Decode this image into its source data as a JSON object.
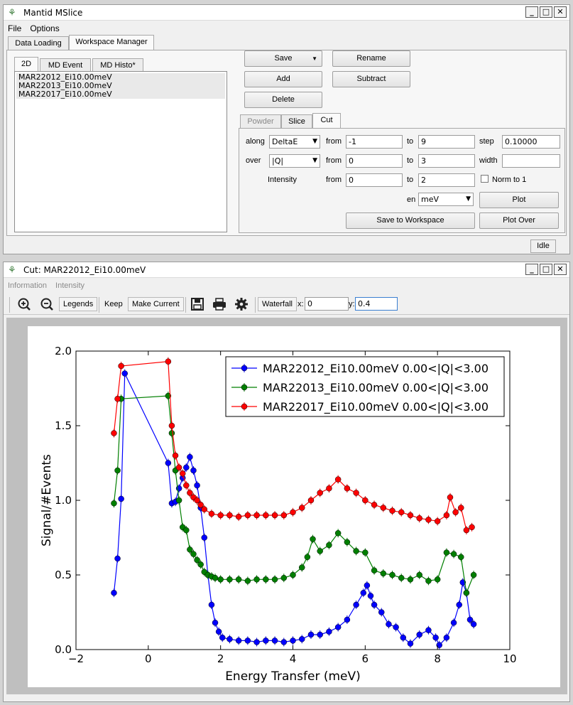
{
  "main_window": {
    "title": "Mantid MSlice",
    "menus": [
      "File",
      "Options"
    ],
    "tabs": [
      "Data Loading",
      "Workspace Manager"
    ],
    "ws_tabs": [
      "2D",
      "MD Event",
      "MD Histo*"
    ],
    "workspaces": [
      "MAR22012_Ei10.00meV",
      "MAR22013_Ei10.00meV",
      "MAR22017_Ei10.00meV"
    ],
    "buttons": {
      "save": "Save",
      "rename": "Rename",
      "add": "Add",
      "subtract": "Subtract",
      "delete": "Delete"
    },
    "sub_tabs": [
      "Powder",
      "Slice",
      "Cut"
    ],
    "cut": {
      "along_label": "along",
      "along_value": "DeltaE",
      "over_label": "over",
      "over_value": "|Q|",
      "intensity_label": "Intensity",
      "from_label": "from",
      "to_label": "to",
      "along_from": "-1",
      "along_to": "9",
      "step_label": "step",
      "step_value": "0.10000",
      "over_from": "0",
      "over_to": "3",
      "width_label": "width",
      "width_value": "",
      "int_from": "0",
      "int_to": "2",
      "norm_label": "Norm to 1",
      "en_label": "en",
      "en_value": "meV",
      "plot": "Plot",
      "save_ws": "Save to Workspace",
      "plot_over": "Plot Over"
    },
    "status": "Idle"
  },
  "plot_window": {
    "title": "Cut: MAR22012_Ei10.00meV",
    "menus": [
      "Information",
      "Intensity"
    ],
    "toolbar": {
      "legends": "Legends",
      "keep": "Keep",
      "make_current": "Make Current",
      "waterfall": "Waterfall",
      "x_label": "x:",
      "x_value": "0",
      "y_label": "y:",
      "y_value": "0.4"
    }
  },
  "chart_data": {
    "type": "line",
    "xlabel": "Energy Transfer (meV)",
    "ylabel": "Signal/#Events",
    "xlim": [
      -2,
      10
    ],
    "ylim": [
      0,
      2.0
    ],
    "xticks": [
      "-2",
      "0",
      "2",
      "4",
      "6",
      "8",
      "10"
    ],
    "yticks": [
      "0.0",
      "0.5",
      "1.0",
      "1.5",
      "2.0"
    ],
    "legend_position": "top-right",
    "series": [
      {
        "name": "MAR22012_Ei10.00meV 0.00<|Q|<3.00",
        "color": "#0000ff",
        "x": [
          -0.95,
          -0.85,
          -0.75,
          -0.65,
          0.55,
          0.65,
          0.75,
          0.85,
          0.95,
          1.05,
          1.15,
          1.25,
          1.35,
          1.45,
          1.55,
          1.65,
          1.75,
          1.85,
          1.95,
          2.05,
          2.25,
          2.5,
          2.75,
          3.0,
          3.25,
          3.5,
          3.75,
          4.0,
          4.25,
          4.5,
          4.75,
          5.0,
          5.25,
          5.5,
          5.75,
          5.95,
          6.05,
          6.15,
          6.25,
          6.45,
          6.65,
          6.85,
          7.05,
          7.25,
          7.5,
          7.75,
          7.95,
          8.05,
          8.25,
          8.45,
          8.6,
          8.7,
          8.8,
          8.9,
          9.0
        ],
        "y": [
          0.38,
          0.61,
          1.01,
          1.85,
          1.25,
          0.98,
          0.99,
          1.08,
          1.15,
          1.22,
          1.29,
          1.2,
          1.1,
          0.95,
          0.75,
          0.5,
          0.3,
          0.18,
          0.12,
          0.08,
          0.07,
          0.06,
          0.06,
          0.05,
          0.06,
          0.06,
          0.05,
          0.06,
          0.07,
          0.1,
          0.1,
          0.12,
          0.15,
          0.2,
          0.3,
          0.38,
          0.43,
          0.36,
          0.3,
          0.25,
          0.17,
          0.15,
          0.08,
          0.04,
          0.1,
          0.13,
          0.08,
          0.03,
          0.08,
          0.18,
          0.3,
          0.45,
          0.38,
          0.2,
          0.17
        ]
      },
      {
        "name": "MAR22013_Ei10.00meV 0.00<|Q|<3.00",
        "color": "#007f00",
        "x": [
          -0.95,
          -0.85,
          -0.75,
          0.55,
          0.65,
          0.75,
          0.85,
          0.95,
          1.05,
          1.15,
          1.25,
          1.35,
          1.45,
          1.55,
          1.65,
          1.75,
          1.85,
          2.0,
          2.25,
          2.5,
          2.75,
          3.0,
          3.25,
          3.5,
          3.75,
          4.0,
          4.25,
          4.4,
          4.55,
          4.75,
          5.0,
          5.25,
          5.5,
          5.75,
          6.0,
          6.25,
          6.5,
          6.75,
          7.0,
          7.25,
          7.5,
          7.75,
          8.0,
          8.25,
          8.45,
          8.65,
          8.8,
          9.0
        ],
        "y": [
          0.98,
          1.2,
          1.68,
          1.7,
          1.45,
          1.2,
          1.0,
          0.82,
          0.8,
          0.67,
          0.64,
          0.6,
          0.57,
          0.52,
          0.5,
          0.49,
          0.48,
          0.47,
          0.47,
          0.47,
          0.46,
          0.47,
          0.47,
          0.47,
          0.48,
          0.5,
          0.55,
          0.62,
          0.74,
          0.66,
          0.7,
          0.78,
          0.72,
          0.66,
          0.65,
          0.53,
          0.51,
          0.5,
          0.48,
          0.47,
          0.5,
          0.46,
          0.47,
          0.65,
          0.64,
          0.62,
          0.38,
          0.5
        ]
      },
      {
        "name": "MAR22017_Ei10.00meV 0.00<|Q|<3.00",
        "color": "#ff0000",
        "x": [
          -0.95,
          -0.85,
          -0.75,
          0.55,
          0.65,
          0.75,
          0.85,
          0.95,
          1.05,
          1.15,
          1.25,
          1.35,
          1.45,
          1.55,
          1.75,
          2.0,
          2.25,
          2.5,
          2.75,
          3.0,
          3.25,
          3.5,
          3.75,
          4.0,
          4.25,
          4.5,
          4.75,
          5.0,
          5.25,
          5.5,
          5.75,
          6.0,
          6.25,
          6.5,
          6.75,
          7.0,
          7.25,
          7.5,
          7.75,
          8.0,
          8.25,
          8.35,
          8.5,
          8.65,
          8.8,
          8.95
        ],
        "y": [
          1.45,
          1.68,
          1.9,
          1.93,
          1.5,
          1.3,
          1.22,
          1.18,
          1.1,
          1.05,
          1.02,
          1.0,
          0.97,
          0.94,
          0.91,
          0.9,
          0.9,
          0.89,
          0.9,
          0.9,
          0.9,
          0.9,
          0.9,
          0.92,
          0.95,
          1.0,
          1.05,
          1.08,
          1.14,
          1.08,
          1.05,
          1.0,
          0.97,
          0.95,
          0.93,
          0.92,
          0.9,
          0.88,
          0.87,
          0.86,
          0.9,
          1.02,
          0.92,
          0.95,
          0.8,
          0.82
        ]
      }
    ]
  }
}
